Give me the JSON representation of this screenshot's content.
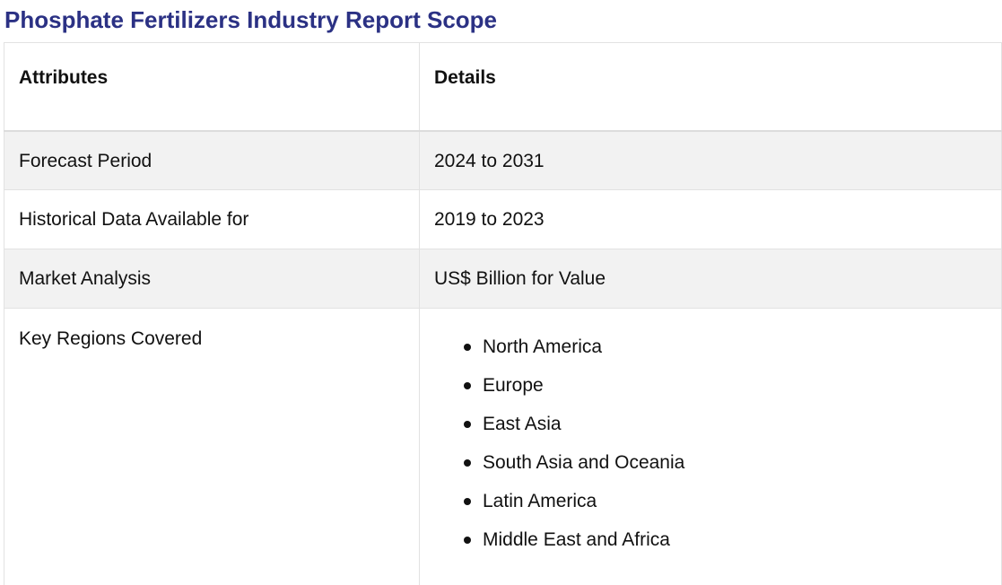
{
  "title": "Phosphate Fertilizers Industry Report Scope",
  "table": {
    "headers": [
      "Attributes",
      "Details"
    ],
    "rows": [
      {
        "attribute": "Forecast Period",
        "detail": "2024 to 2031"
      },
      {
        "attribute": "Historical Data Available for",
        "detail": "2019 to 2023"
      },
      {
        "attribute": "Market Analysis",
        "detail": "US$ Billion for Value"
      }
    ],
    "regions": {
      "attribute": "Key Regions Covered",
      "items": [
        "North America",
        "Europe",
        "East Asia",
        "South Asia and Oceania",
        "Latin America",
        "Middle East and Africa"
      ]
    }
  }
}
